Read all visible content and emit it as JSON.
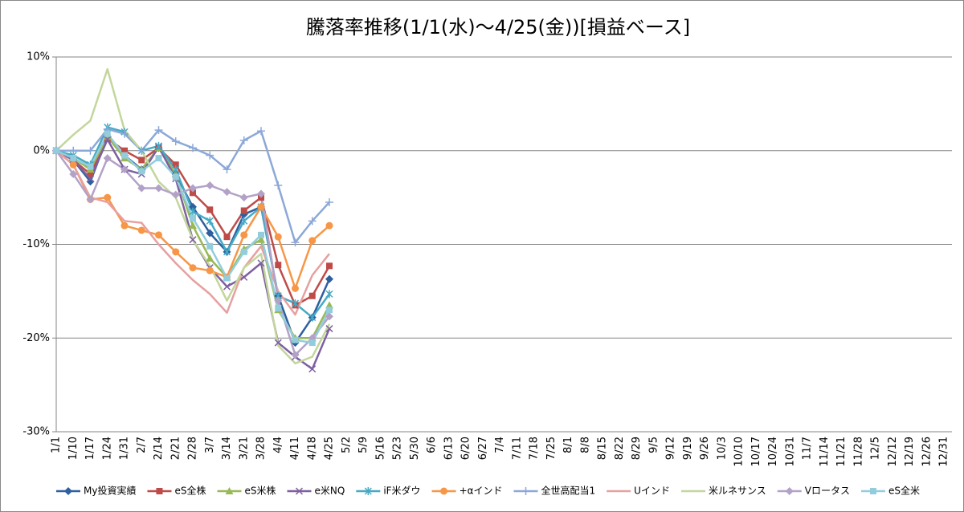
{
  "chart_data": {
    "type": "line",
    "title": "騰落率推移(1/1(水)～4/25(金))[損益ベース]",
    "categories": [
      "1/1",
      "1/10",
      "1/17",
      "1/24",
      "1/31",
      "2/7",
      "2/14",
      "2/21",
      "2/28",
      "3/7",
      "3/14",
      "3/21",
      "3/28",
      "4/4",
      "4/11",
      "4/18",
      "4/25",
      "5/2",
      "5/9",
      "5/16",
      "5/23",
      "5/30",
      "6/6",
      "6/13",
      "6/20",
      "6/27",
      "7/4",
      "7/11",
      "7/18",
      "7/25",
      "8/1",
      "8/8",
      "8/15",
      "8/22",
      "8/29",
      "9/5",
      "9/12",
      "9/19",
      "9/26",
      "10/3",
      "10/10",
      "10/17",
      "10/24",
      "10/31",
      "11/7",
      "11/14",
      "11/21",
      "11/28",
      "12/5",
      "12/12",
      "12/19",
      "12/26",
      "12/31"
    ],
    "ylim": [
      -30,
      10
    ],
    "yticks": [
      {
        "value": -30,
        "label": "-30%"
      },
      {
        "value": -20,
        "label": "-20%"
      },
      {
        "value": -10,
        "label": "-10%"
      },
      {
        "value": 0,
        "label": "0%"
      },
      {
        "value": 10,
        "label": "10%"
      }
    ],
    "grid": true,
    "legend": "bottom",
    "series": [
      {
        "name": "My投資実績",
        "color": "#2e5f9e",
        "marker": "diamond",
        "values": [
          0,
          -1,
          -3.3,
          1.5,
          -0.5,
          -2,
          0.3,
          -2.5,
          -6,
          -8.8,
          -10.8,
          -6.8,
          -6,
          -15.5,
          -20.5,
          -17.8,
          -13.7,
          null,
          null,
          null,
          null,
          null,
          null,
          null,
          null,
          null,
          null,
          null,
          null,
          null,
          null,
          null,
          null,
          null,
          null,
          null,
          null,
          null,
          null,
          null,
          null,
          null,
          null,
          null,
          null,
          null,
          null,
          null,
          null,
          null,
          null,
          null,
          null
        ]
      },
      {
        "name": "eS全株",
        "color": "#be4b48",
        "marker": "square",
        "values": [
          0,
          -1,
          -2.5,
          1.3,
          0,
          -1,
          0.3,
          -1.5,
          -4.5,
          -6.3,
          -9.2,
          -6.4,
          -5,
          -12.2,
          -16.5,
          -15.5,
          -12.3,
          null,
          null,
          null,
          null,
          null,
          null,
          null,
          null,
          null,
          null,
          null,
          null,
          null,
          null,
          null,
          null,
          null,
          null,
          null,
          null,
          null,
          null,
          null,
          null,
          null,
          null,
          null,
          null,
          null,
          null,
          null,
          null,
          null,
          null,
          null,
          null
        ]
      },
      {
        "name": "eS米株",
        "color": "#98b954",
        "marker": "triangle",
        "values": [
          0,
          -0.8,
          -2,
          1.5,
          -0.8,
          -2,
          0.3,
          -2.5,
          -8,
          -11.5,
          -13.5,
          -10.5,
          -9.5,
          -17,
          -20,
          -20,
          -16.5,
          null,
          null,
          null,
          null,
          null,
          null,
          null,
          null,
          null,
          null,
          null,
          null,
          null,
          null,
          null,
          null,
          null,
          null,
          null,
          null,
          null,
          null,
          null,
          null,
          null,
          null,
          null,
          null,
          null,
          null,
          null,
          null,
          null,
          null,
          null,
          null
        ]
      },
      {
        "name": "e米NQ",
        "color": "#7d60a0",
        "marker": "x",
        "values": [
          0,
          -1,
          -3,
          1.2,
          -2,
          -2.5,
          0.4,
          -3,
          -9.5,
          -12.5,
          -14.5,
          -13.5,
          -12,
          -20.5,
          -22,
          -23.3,
          -19,
          null,
          null,
          null,
          null,
          null,
          null,
          null,
          null,
          null,
          null,
          null,
          null,
          null,
          null,
          null,
          null,
          null,
          null,
          null,
          null,
          null,
          null,
          null,
          null,
          null,
          null,
          null,
          null,
          null,
          null,
          null,
          null,
          null,
          null,
          null,
          null
        ]
      },
      {
        "name": "iF米ダウ",
        "color": "#46aac5",
        "marker": "star",
        "values": [
          0,
          -0.5,
          -1.5,
          2.5,
          2,
          0,
          0.5,
          -2,
          -6.5,
          -7.5,
          -10.8,
          -7.5,
          -6,
          -15.5,
          -16.3,
          -17.8,
          -15.3,
          null,
          null,
          null,
          null,
          null,
          null,
          null,
          null,
          null,
          null,
          null,
          null,
          null,
          null,
          null,
          null,
          null,
          null,
          null,
          null,
          null,
          null,
          null,
          null,
          null,
          null,
          null,
          null,
          null,
          null,
          null,
          null,
          null,
          null,
          null,
          null
        ]
      },
      {
        "name": "+αインド",
        "color": "#f79646",
        "marker": "circle",
        "values": [
          0,
          -1.5,
          -5.2,
          -5,
          -8,
          -8.5,
          -9,
          -10.8,
          -12.5,
          -12.8,
          -13.5,
          -9,
          -6,
          -9.2,
          -14.7,
          -9.6,
          -8,
          null,
          null,
          null,
          null,
          null,
          null,
          null,
          null,
          null,
          null,
          null,
          null,
          null,
          null,
          null,
          null,
          null,
          null,
          null,
          null,
          null,
          null,
          null,
          null,
          null,
          null,
          null,
          null,
          null,
          null,
          null,
          null,
          null,
          null,
          null,
          null
        ]
      },
      {
        "name": "全世高配当1",
        "color": "#8ca8d8",
        "marker": "plus",
        "values": [
          0,
          0,
          0,
          2.3,
          1.8,
          0,
          2.2,
          1,
          0.3,
          -0.5,
          -2,
          1.1,
          2.1,
          -3.7,
          -9.8,
          -7.5,
          -5.5,
          null,
          null,
          null,
          null,
          null,
          null,
          null,
          null,
          null,
          null,
          null,
          null,
          null,
          null,
          null,
          null,
          null,
          null,
          null,
          null,
          null,
          null,
          null,
          null,
          null,
          null,
          null,
          null,
          null,
          null,
          null,
          null,
          null,
          null,
          null,
          null
        ]
      },
      {
        "name": "Uインド",
        "color": "#e6a0a0",
        "marker": "none",
        "values": [
          0,
          -1.5,
          -5,
          -5.5,
          -7.5,
          -7.7,
          -10,
          -12,
          -13.8,
          -15.3,
          -17.3,
          -12.5,
          -10.2,
          -15,
          -17.5,
          -13.3,
          -11,
          null,
          null,
          null,
          null,
          null,
          null,
          null,
          null,
          null,
          null,
          null,
          null,
          null,
          null,
          null,
          null,
          null,
          null,
          null,
          null,
          null,
          null,
          null,
          null,
          null,
          null,
          null,
          null,
          null,
          null,
          null,
          null,
          null,
          null,
          null,
          null
        ]
      },
      {
        "name": "米ルネサンス",
        "color": "#c3d69b",
        "marker": "none",
        "values": [
          0,
          1.7,
          3.2,
          8.7,
          2.2,
          0,
          -3.3,
          -5,
          -9.5,
          -12.3,
          -16,
          -12.5,
          -11,
          -20.8,
          -22.7,
          -22,
          -18.5,
          null,
          null,
          null,
          null,
          null,
          null,
          null,
          null,
          null,
          null,
          null,
          null,
          null,
          null,
          null,
          null,
          null,
          null,
          null,
          null,
          null,
          null,
          null,
          null,
          null,
          null,
          null,
          null,
          null,
          null,
          null,
          null,
          null,
          null,
          null,
          null
        ]
      },
      {
        "name": "Vロータス",
        "color": "#b3a2c7",
        "marker": "diamond",
        "values": [
          0,
          -2.5,
          -5.2,
          -0.8,
          -2,
          -4,
          -4,
          -4.7,
          -4,
          -3.7,
          -4.4,
          -5,
          -4.6,
          -16,
          -21.8,
          -20,
          -17.7,
          null,
          null,
          null,
          null,
          null,
          null,
          null,
          null,
          null,
          null,
          null,
          null,
          null,
          null,
          null,
          null,
          null,
          null,
          null,
          null,
          null,
          null,
          null,
          null,
          null,
          null,
          null,
          null,
          null,
          null,
          null,
          null,
          null,
          null,
          null,
          null
        ]
      },
      {
        "name": "eS全米",
        "color": "#93cddd",
        "marker": "square",
        "values": [
          0,
          -0.8,
          -1.7,
          1.8,
          -0.5,
          -2.2,
          -0.8,
          -2.8,
          -7.2,
          -10.2,
          -13.6,
          -10.8,
          -9,
          -16.8,
          -20.2,
          -20.5,
          -17,
          null,
          null,
          null,
          null,
          null,
          null,
          null,
          null,
          null,
          null,
          null,
          null,
          null,
          null,
          null,
          null,
          null,
          null,
          null,
          null,
          null,
          null,
          null,
          null,
          null,
          null,
          null,
          null,
          null,
          null,
          null,
          null,
          null,
          null,
          null,
          null
        ]
      }
    ]
  }
}
